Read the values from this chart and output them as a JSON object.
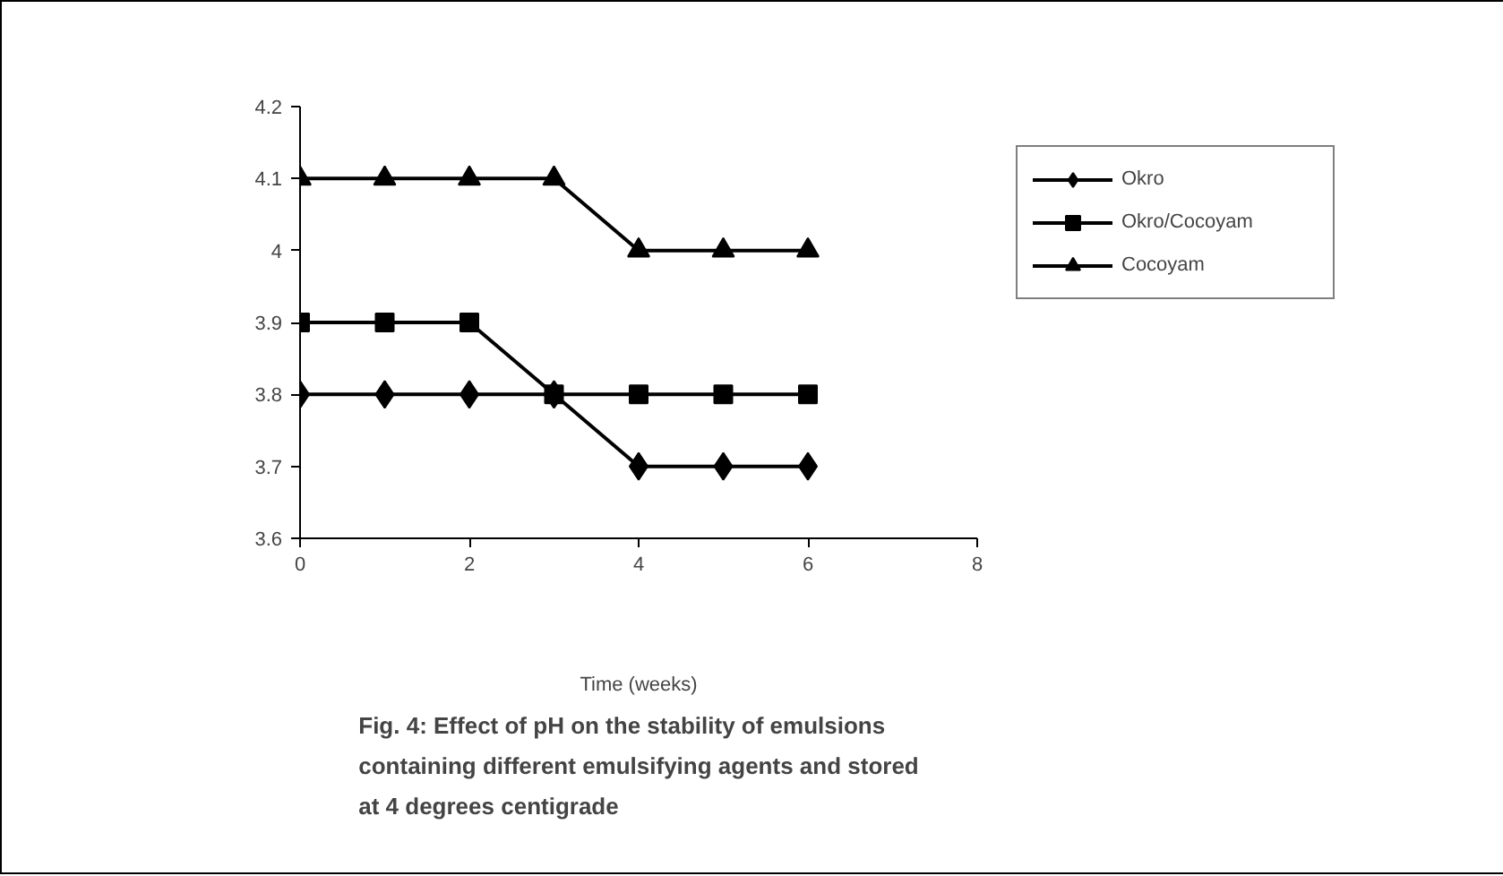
{
  "chart_data": {
    "type": "line",
    "title": "Fig. 4: Effect of pH on the stability of emulsions containing different emulsifying agents and stored at 4 degrees centigrade",
    "xlabel": "Time (weeks)",
    "x": [
      0,
      1,
      2,
      3,
      4,
      5,
      6
    ],
    "series": [
      {
        "name": "Okro",
        "color": "#000000",
        "marker": "diamond",
        "values": [
          3.8,
          3.8,
          3.8,
          3.8,
          3.7,
          3.7,
          3.7
        ]
      },
      {
        "name": "Okro/Cocoyam",
        "color": "#000000",
        "marker": "square",
        "values": [
          3.9,
          3.9,
          3.9,
          3.8,
          3.8,
          3.8,
          3.8
        ]
      },
      {
        "name": "Cocoyam",
        "color": "#000000",
        "marker": "triangle",
        "values": [
          4.1,
          4.1,
          4.1,
          4.1,
          4.0,
          4.0,
          4.0
        ]
      }
    ],
    "xlim": [
      0,
      8
    ],
    "xticks": [
      0,
      2,
      4,
      6,
      8
    ],
    "ylim": [
      3.6,
      4.2
    ],
    "yticks": [
      3.6,
      3.7,
      3.8,
      3.9,
      4,
      4.1,
      4.2
    ],
    "grid": false,
    "legend": "right",
    "line_style": "solid"
  }
}
